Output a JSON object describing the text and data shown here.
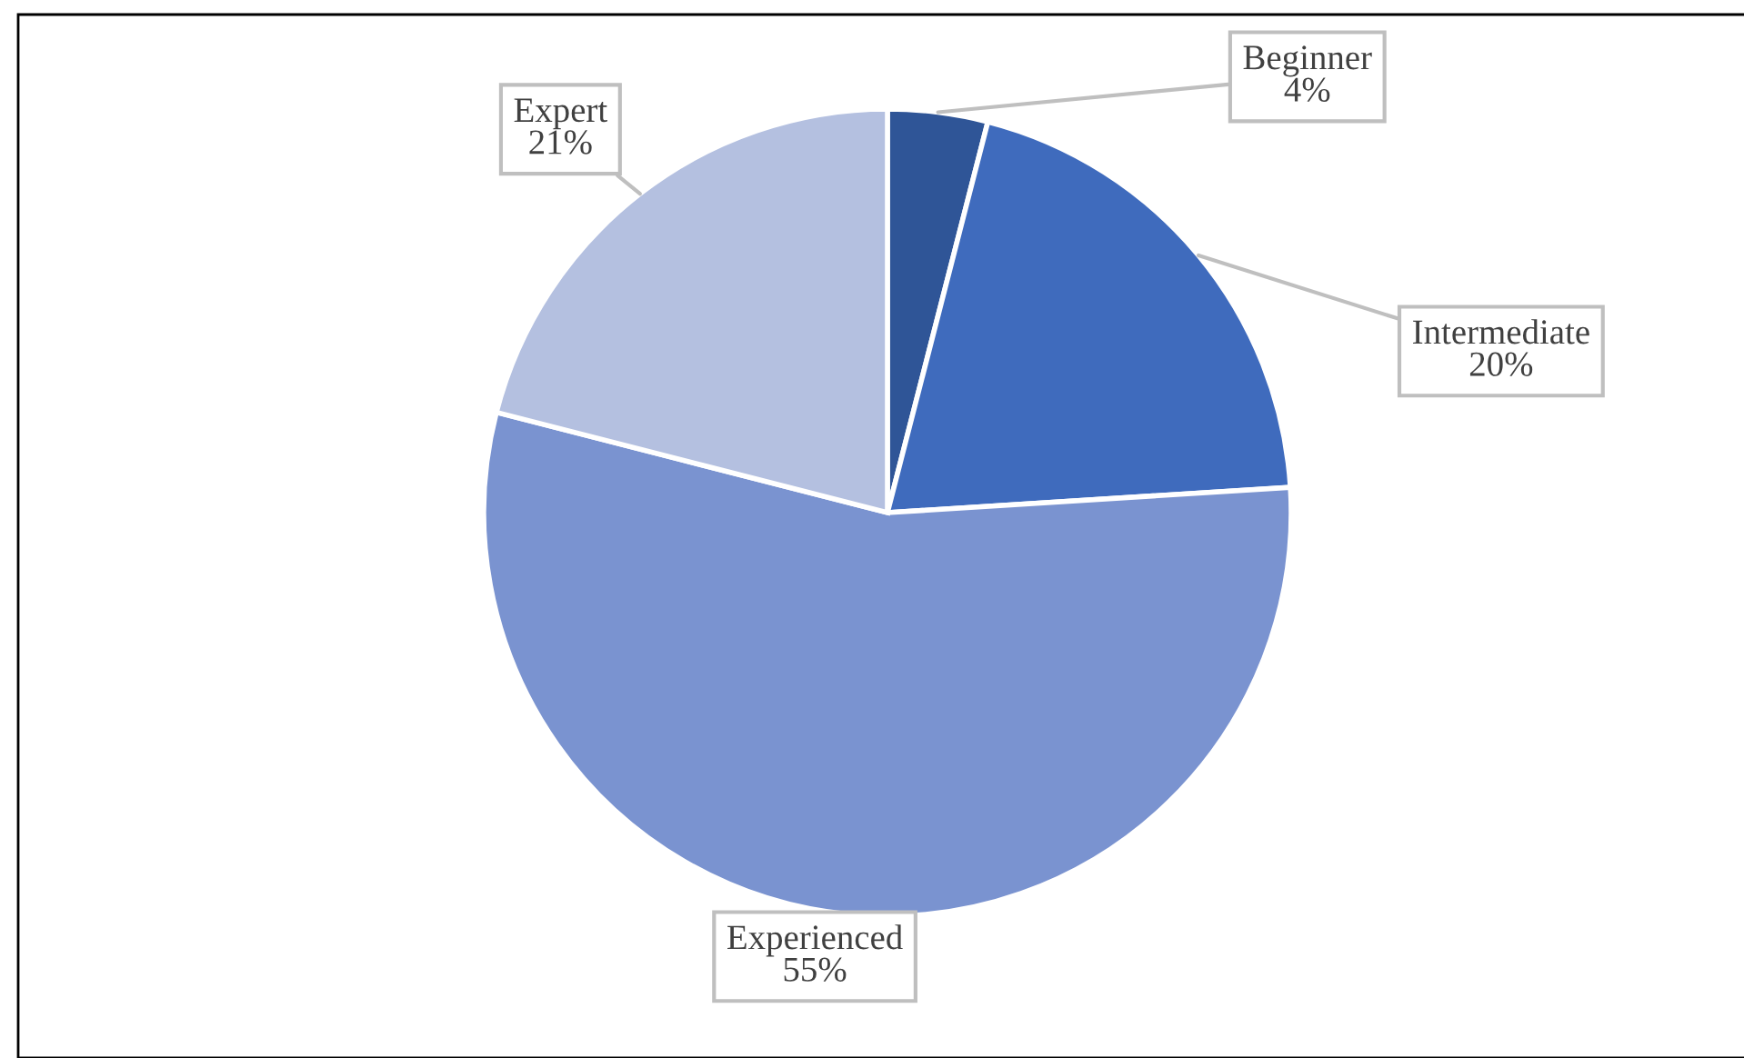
{
  "chart_data": {
    "type": "pie",
    "categories": [
      "Beginner",
      "Intermediate",
      "Experienced",
      "Expert"
    ],
    "values": [
      4,
      20,
      55,
      21
    ],
    "value_labels": [
      "4%",
      "20%",
      "55%",
      "21%"
    ],
    "colors": [
      "#2f5597",
      "#3f6bbd",
      "#7a93d0",
      "#b4c0e0"
    ],
    "legend": false
  }
}
